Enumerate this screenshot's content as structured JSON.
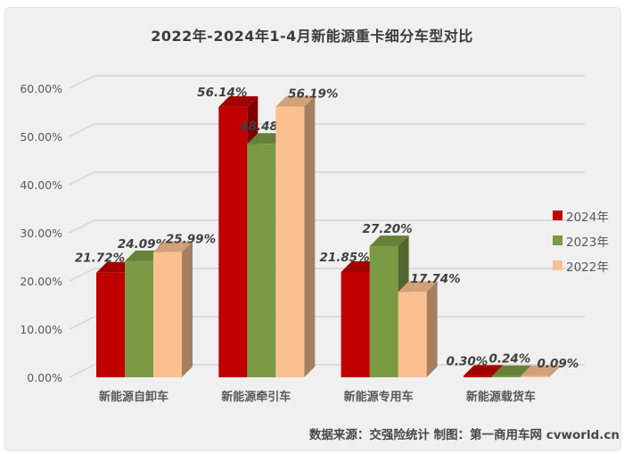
{
  "chart_data": {
    "type": "bar",
    "variant": "3d-clustered-column",
    "title": "2022年-2024年1-4月新能源重卡细分车型对比",
    "categories": [
      "新能源自卸车",
      "新能源牵引车",
      "新能源专用车",
      "新能源载货车"
    ],
    "series": [
      {
        "name": "2024年",
        "color": "#c00000",
        "values": [
          21.72,
          56.14,
          21.85,
          0.3
        ]
      },
      {
        "name": "2023年",
        "color": "#7a9a43",
        "values": [
          24.09,
          48.48,
          27.2,
          0.24
        ]
      },
      {
        "name": "2022年",
        "color": "#fac090",
        "values": [
          25.99,
          56.19,
          17.74,
          0.09
        ]
      }
    ],
    "y_axis": {
      "tick_labels": [
        "0.00%",
        "10.00%",
        "20.00%",
        "30.00%",
        "40.00%",
        "50.00%",
        "60.00%"
      ],
      "tick_values": [
        0,
        10,
        20,
        30,
        40,
        50,
        60
      ],
      "min": 0,
      "max": 60
    },
    "value_label_format": "0.00%",
    "grid": true,
    "legend_position": "right",
    "colors": {
      "background_panel": "#f0f0f0",
      "gridline": "#dadada",
      "axis_text": "#595959",
      "value_label_text": "#3f3f3f",
      "title_text": "#3b3b3b"
    }
  },
  "footer": {
    "source_text": "数据来源：交强险统计 制图：第一商用车网 cvworld.cn"
  }
}
